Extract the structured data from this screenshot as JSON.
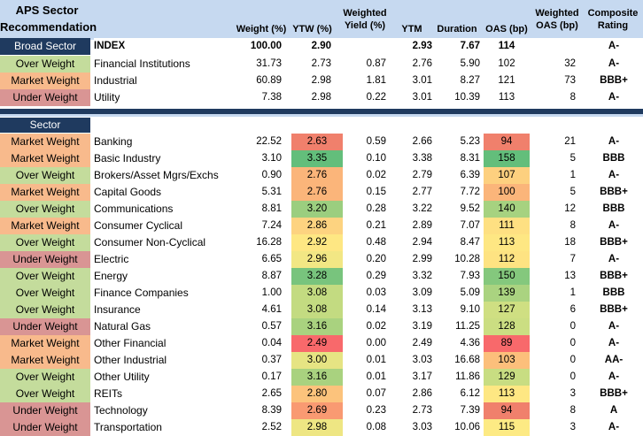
{
  "title": "APS Sector Recommendation",
  "headers": {
    "weight": "Weight (%)",
    "ytw": "YTW (%)",
    "wyield": "Weighted Yield (%)",
    "ytm": "YTM",
    "duration": "Duration",
    "oas": "OAS (bp)",
    "woas": "Weighted OAS (bp)",
    "rating": "Composite Rating"
  },
  "colors": {
    "over": "#c4dc9c",
    "market": "#f8ba8c",
    "under": "#d99594",
    "header": "#c6d9f0",
    "navy": "#1f3a5f"
  },
  "broad": {
    "label": "Broad Sector",
    "index": {
      "name": "INDEX",
      "w": "100.00",
      "ytw": "2.90",
      "wy": "",
      "ytm": "2.93",
      "dur": "7.67",
      "oas": "114",
      "woas": "",
      "rat": "A-"
    },
    "rows": [
      {
        "rec": "Over Weight",
        "name": "Financial Institutions",
        "w": "31.73",
        "ytw": "2.73",
        "wy": "0.87",
        "ytm": "2.76",
        "dur": "5.90",
        "oas": "102",
        "woas": "32",
        "rat": "A-"
      },
      {
        "rec": "Market Weight",
        "name": "Industrial",
        "w": "60.89",
        "ytw": "2.98",
        "wy": "1.81",
        "ytm": "3.01",
        "dur": "8.27",
        "oas": "121",
        "woas": "73",
        "rat": "BBB+"
      },
      {
        "rec": "Under Weight",
        "name": "Utility",
        "w": "7.38",
        "ytw": "2.98",
        "wy": "0.22",
        "ytm": "3.01",
        "dur": "10.39",
        "oas": "113",
        "woas": "8",
        "rat": "A-"
      }
    ]
  },
  "sector": {
    "label": "Sector",
    "rows": [
      {
        "rec": "Market Weight",
        "name": "Banking",
        "w": "22.52",
        "ytw": "2.63",
        "wy": "0.59",
        "ytm": "2.66",
        "dur": "5.23",
        "oas": "94",
        "woas": "21",
        "rat": "A-",
        "ytwc": "#f0806c",
        "oasc": "#f0806c"
      },
      {
        "rec": "Market Weight",
        "name": "Basic Industry",
        "w": "3.10",
        "ytw": "3.35",
        "wy": "0.10",
        "ytm": "3.38",
        "dur": "8.31",
        "oas": "158",
        "woas": "5",
        "rat": "BBB",
        "ytwc": "#63be7b",
        "oasc": "#63be7b"
      },
      {
        "rec": "Over Weight",
        "name": "Brokers/Asset Mgrs/Exchs",
        "w": "0.90",
        "ytw": "2.76",
        "wy": "0.02",
        "ytm": "2.79",
        "dur": "6.39",
        "oas": "107",
        "woas": "1",
        "rat": "A-",
        "ytwc": "#fbb57a",
        "oasc": "#fdd07f"
      },
      {
        "rec": "Market Weight",
        "name": "Capital Goods",
        "w": "5.31",
        "ytw": "2.76",
        "wy": "0.15",
        "ytm": "2.77",
        "dur": "7.72",
        "oas": "100",
        "woas": "5",
        "rat": "BBB+",
        "ytwc": "#fbb57a",
        "oasc": "#fbb57a"
      },
      {
        "rec": "Over Weight",
        "name": "Communications",
        "w": "8.81",
        "ytw": "3.20",
        "wy": "0.28",
        "ytm": "3.22",
        "dur": "9.52",
        "oas": "140",
        "woas": "12",
        "rat": "BBB",
        "ytwc": "#9bce7f",
        "oasc": "#a6d280"
      },
      {
        "rec": "Market Weight",
        "name": "Consumer Cyclical",
        "w": "7.24",
        "ytw": "2.86",
        "wy": "0.21",
        "ytm": "2.89",
        "dur": "7.07",
        "oas": "111",
        "woas": "8",
        "rat": "A-",
        "ytwc": "#fdd380",
        "oasc": "#fee082"
      },
      {
        "rec": "Over Weight",
        "name": "Consumer Non-Cyclical",
        "w": "16.28",
        "ytw": "2.92",
        "wy": "0.48",
        "ytm": "2.94",
        "dur": "8.47",
        "oas": "113",
        "woas": "18",
        "rat": "BBB+",
        "ytwc": "#fee783",
        "oasc": "#fee783"
      },
      {
        "rec": "Under Weight",
        "name": "Electric",
        "w": "6.65",
        "ytw": "2.96",
        "wy": "0.20",
        "ytm": "2.99",
        "dur": "10.28",
        "oas": "112",
        "woas": "7",
        "rat": "A-",
        "ytwc": "#f2e784",
        "oasc": "#fee382"
      },
      {
        "rec": "Over Weight",
        "name": "Energy",
        "w": "8.87",
        "ytw": "3.28",
        "wy": "0.29",
        "ytm": "3.32",
        "dur": "7.93",
        "oas": "150",
        "woas": "13",
        "rat": "BBB+",
        "ytwc": "#78c47d",
        "oasc": "#84c87d"
      },
      {
        "rec": "Over Weight",
        "name": "Finance Companies",
        "w": "1.00",
        "ytw": "3.08",
        "wy": "0.03",
        "ytm": "3.09",
        "dur": "5.09",
        "oas": "139",
        "woas": "1",
        "rat": "BBB",
        "ytwc": "#c3db81",
        "oasc": "#aad380"
      },
      {
        "rec": "Over Weight",
        "name": "Insurance",
        "w": "4.61",
        "ytw": "3.08",
        "wy": "0.14",
        "ytm": "3.13",
        "dur": "9.10",
        "oas": "127",
        "woas": "6",
        "rat": "BBB+",
        "ytwc": "#c3db81",
        "oasc": "#cfdf82"
      },
      {
        "rec": "Under Weight",
        "name": "Natural Gas",
        "w": "0.57",
        "ytw": "3.16",
        "wy": "0.02",
        "ytm": "3.19",
        "dur": "11.25",
        "oas": "128",
        "woas": "0",
        "rat": "A-",
        "ytwc": "#a9d27f",
        "oasc": "#cbde82"
      },
      {
        "rec": "Market Weight",
        "name": "Other Financial",
        "w": "0.04",
        "ytw": "2.49",
        "wy": "0.00",
        "ytm": "2.49",
        "dur": "4.36",
        "oas": "89",
        "woas": "0",
        "rat": "A-",
        "ytwc": "#f8696b",
        "oasc": "#f8696b"
      },
      {
        "rec": "Market Weight",
        "name": "Other Industrial",
        "w": "0.37",
        "ytw": "3.00",
        "wy": "0.01",
        "ytm": "3.03",
        "dur": "16.68",
        "oas": "103",
        "woas": "0",
        "rat": "AA-",
        "ytwc": "#e6e483",
        "oasc": "#fcbf7b"
      },
      {
        "rec": "Over Weight",
        "name": "Other Utility",
        "w": "0.17",
        "ytw": "3.16",
        "wy": "0.01",
        "ytm": "3.17",
        "dur": "11.86",
        "oas": "129",
        "woas": "0",
        "rat": "A-",
        "ytwc": "#a9d27f",
        "oasc": "#c8dd82"
      },
      {
        "rec": "Over Weight",
        "name": "REITs",
        "w": "2.65",
        "ytw": "2.80",
        "wy": "0.07",
        "ytm": "2.86",
        "dur": "6.12",
        "oas": "113",
        "woas": "3",
        "rat": "BBB+",
        "ytwc": "#fcc37c",
        "oasc": "#fee783"
      },
      {
        "rec": "Under Weight",
        "name": "Technology",
        "w": "8.39",
        "ytw": "2.69",
        "wy": "0.23",
        "ytm": "2.73",
        "dur": "7.39",
        "oas": "94",
        "woas": "8",
        "rat": "A",
        "ytwc": "#f99a72",
        "oasc": "#f0806c"
      },
      {
        "rec": "Under Weight",
        "name": "Transportation",
        "w": "2.52",
        "ytw": "2.98",
        "wy": "0.08",
        "ytm": "3.03",
        "dur": "10.06",
        "oas": "115",
        "woas": "3",
        "rat": "A-",
        "ytwc": "#eee683",
        "oasc": "#fdea84"
      }
    ]
  }
}
